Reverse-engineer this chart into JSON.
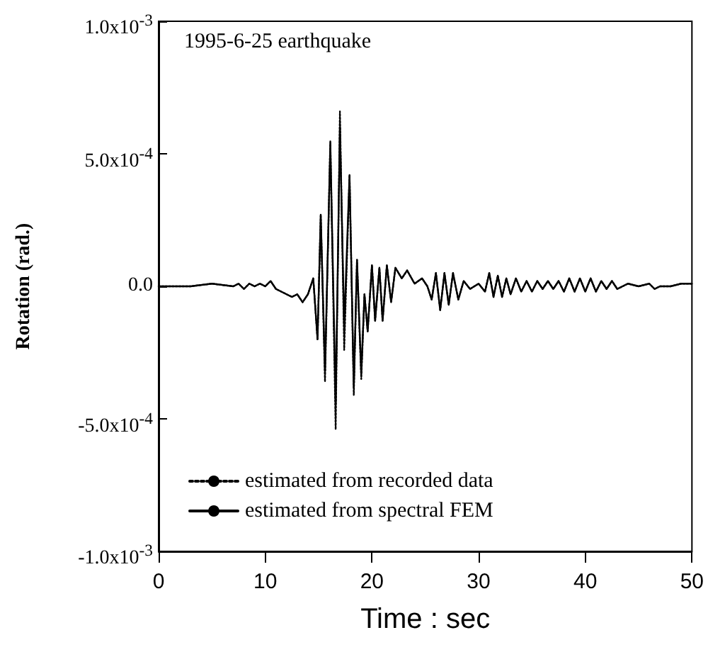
{
  "chart_data": {
    "type": "line",
    "xlabel": "Time : sec",
    "ylabel": "Rotation (rad.)",
    "annotations": [
      "1995-6-25 earthquake"
    ],
    "xlim": [
      0,
      50
    ],
    "xticks": [
      0,
      10,
      20,
      30,
      40,
      50
    ],
    "ylim": [
      -0.001,
      0.001
    ],
    "yticks": [
      {
        "value": -0.001,
        "label": "-1.0x10$^{-3}$"
      },
      {
        "value": -0.0005,
        "label": "-5.0x10$^{-4}$"
      },
      {
        "value": 0,
        "label": "0.0"
      },
      {
        "value": 0.0005,
        "label": "5.0x10$^{-4}$"
      },
      {
        "value": 0.001,
        "label": "1.0x10$^{-3}$"
      }
    ],
    "grid": false,
    "legend": "bottom left",
    "marker": "none",
    "series": [
      {
        "name": "estimated from recorded data",
        "color": "#000000",
        "line_style": "dotted",
        "x": [
          0,
          3,
          5,
          7,
          7.5,
          8,
          8.5,
          9,
          9.5,
          10,
          10.5,
          11,
          11.5,
          12,
          12.5,
          13,
          13.5,
          14,
          14.5,
          14.9,
          15.2,
          15.6,
          16.1,
          16.6,
          17.0,
          17.4,
          17.9,
          18.3,
          18.6,
          19.0,
          19.3,
          19.6,
          20.0,
          20.3,
          20.7,
          21.0,
          21.4,
          21.8,
          22.2,
          22.8,
          23.3,
          24.0,
          24.7,
          25.2,
          25.6,
          26.0,
          26.4,
          26.8,
          27.2,
          27.6,
          28.1,
          28.6,
          29.2,
          30.0,
          30.6,
          31.0,
          31.4,
          31.8,
          32.2,
          32.6,
          33.0,
          33.5,
          34.0,
          34.5,
          35.0,
          35.5,
          36.0,
          36.5,
          37.0,
          37.5,
          38.0,
          38.5,
          39.0,
          39.5,
          40.0,
          40.5,
          41.0,
          41.5,
          42.0,
          42.5,
          43.0,
          44.0,
          45.0,
          46.0,
          46.5,
          47.0,
          48.0,
          49.0,
          50.0
        ],
        "values": [
          0,
          0,
          1e-05,
          0,
          1e-05,
          -1e-05,
          1e-05,
          0,
          1e-05,
          0,
          2e-05,
          -1e-05,
          -2e-05,
          -3e-05,
          -4e-05,
          -3e-05,
          -6e-05,
          -3e-05,
          3e-05,
          -0.0002,
          0.00027,
          -0.00036,
          0.00055,
          -0.00054,
          0.00066,
          -0.00024,
          0.00042,
          -0.00041,
          0.0001,
          -0.00035,
          -3e-05,
          -0.00017,
          8e-05,
          -0.00013,
          7e-05,
          -0.00013,
          8e-05,
          -6e-05,
          7e-05,
          3e-05,
          6e-05,
          1e-05,
          3e-05,
          0,
          -5e-05,
          5e-05,
          -9e-05,
          5e-05,
          -7e-05,
          5e-05,
          -5e-05,
          2e-05,
          -1e-05,
          1e-05,
          -2e-05,
          5e-05,
          -4e-05,
          4e-05,
          -4e-05,
          3e-05,
          -3e-05,
          3e-05,
          -2e-05,
          2e-05,
          -2e-05,
          2e-05,
          -1e-05,
          2e-05,
          -1e-05,
          2e-05,
          -2e-05,
          3e-05,
          -2e-05,
          3e-05,
          -2e-05,
          3e-05,
          -2e-05,
          2e-05,
          -1e-05,
          2e-05,
          -1e-05,
          1e-05,
          0,
          1e-05,
          -1e-05,
          0,
          0,
          1e-05,
          1e-05
        ]
      },
      {
        "name": "estimated from spectral FEM",
        "color": "#000000",
        "line_style": "solid",
        "x": [
          0,
          3,
          5,
          7,
          7.5,
          8,
          8.5,
          9,
          9.5,
          10,
          10.5,
          11,
          11.5,
          12,
          12.5,
          13,
          13.5,
          14,
          14.5,
          14.9,
          15.2,
          15.6,
          16.1,
          16.6,
          17.0,
          17.4,
          17.9,
          18.3,
          18.6,
          19.0,
          19.3,
          19.6,
          20.0,
          20.3,
          20.7,
          21.0,
          21.4,
          21.8,
          22.2,
          22.8,
          23.3,
          24.0,
          24.7,
          25.2,
          25.6,
          26.0,
          26.4,
          26.8,
          27.2,
          27.6,
          28.1,
          28.6,
          29.2,
          30.0,
          30.6,
          31.0,
          31.4,
          31.8,
          32.2,
          32.6,
          33.0,
          33.5,
          34.0,
          34.5,
          35.0,
          35.5,
          36.0,
          36.5,
          37.0,
          37.5,
          38.0,
          38.5,
          39.0,
          39.5,
          40.0,
          40.5,
          41.0,
          41.5,
          42.0,
          42.5,
          43.0,
          44.0,
          45.0,
          46.0,
          46.5,
          47.0,
          48.0,
          49.0,
          50.0
        ],
        "values": [
          0,
          0,
          1e-05,
          0,
          1e-05,
          -1e-05,
          1e-05,
          0,
          1e-05,
          0,
          2e-05,
          -1e-05,
          -2e-05,
          -3e-05,
          -4e-05,
          -3e-05,
          -6e-05,
          -3e-05,
          3e-05,
          -0.0002,
          0.00027,
          -0.00032,
          0.00054,
          -0.00044,
          0.0006,
          -0.00015,
          0.00042,
          -0.00038,
          0.0001,
          -0.00033,
          -3e-05,
          -0.00017,
          8e-05,
          -0.00013,
          7e-05,
          -0.00013,
          8e-05,
          -6e-05,
          7e-05,
          3e-05,
          6e-05,
          1e-05,
          3e-05,
          0,
          -5e-05,
          5e-05,
          -9e-05,
          5e-05,
          -7e-05,
          5e-05,
          -5e-05,
          2e-05,
          -1e-05,
          1e-05,
          -2e-05,
          5e-05,
          -4e-05,
          4e-05,
          -4e-05,
          3e-05,
          -3e-05,
          3e-05,
          -2e-05,
          2e-05,
          -2e-05,
          2e-05,
          -1e-05,
          2e-05,
          -1e-05,
          2e-05,
          -2e-05,
          3e-05,
          -2e-05,
          3e-05,
          -2e-05,
          3e-05,
          -2e-05,
          2e-05,
          -1e-05,
          2e-05,
          -1e-05,
          1e-05,
          0,
          1e-05,
          -1e-05,
          0,
          0,
          1e-05,
          1e-05
        ]
      }
    ]
  }
}
